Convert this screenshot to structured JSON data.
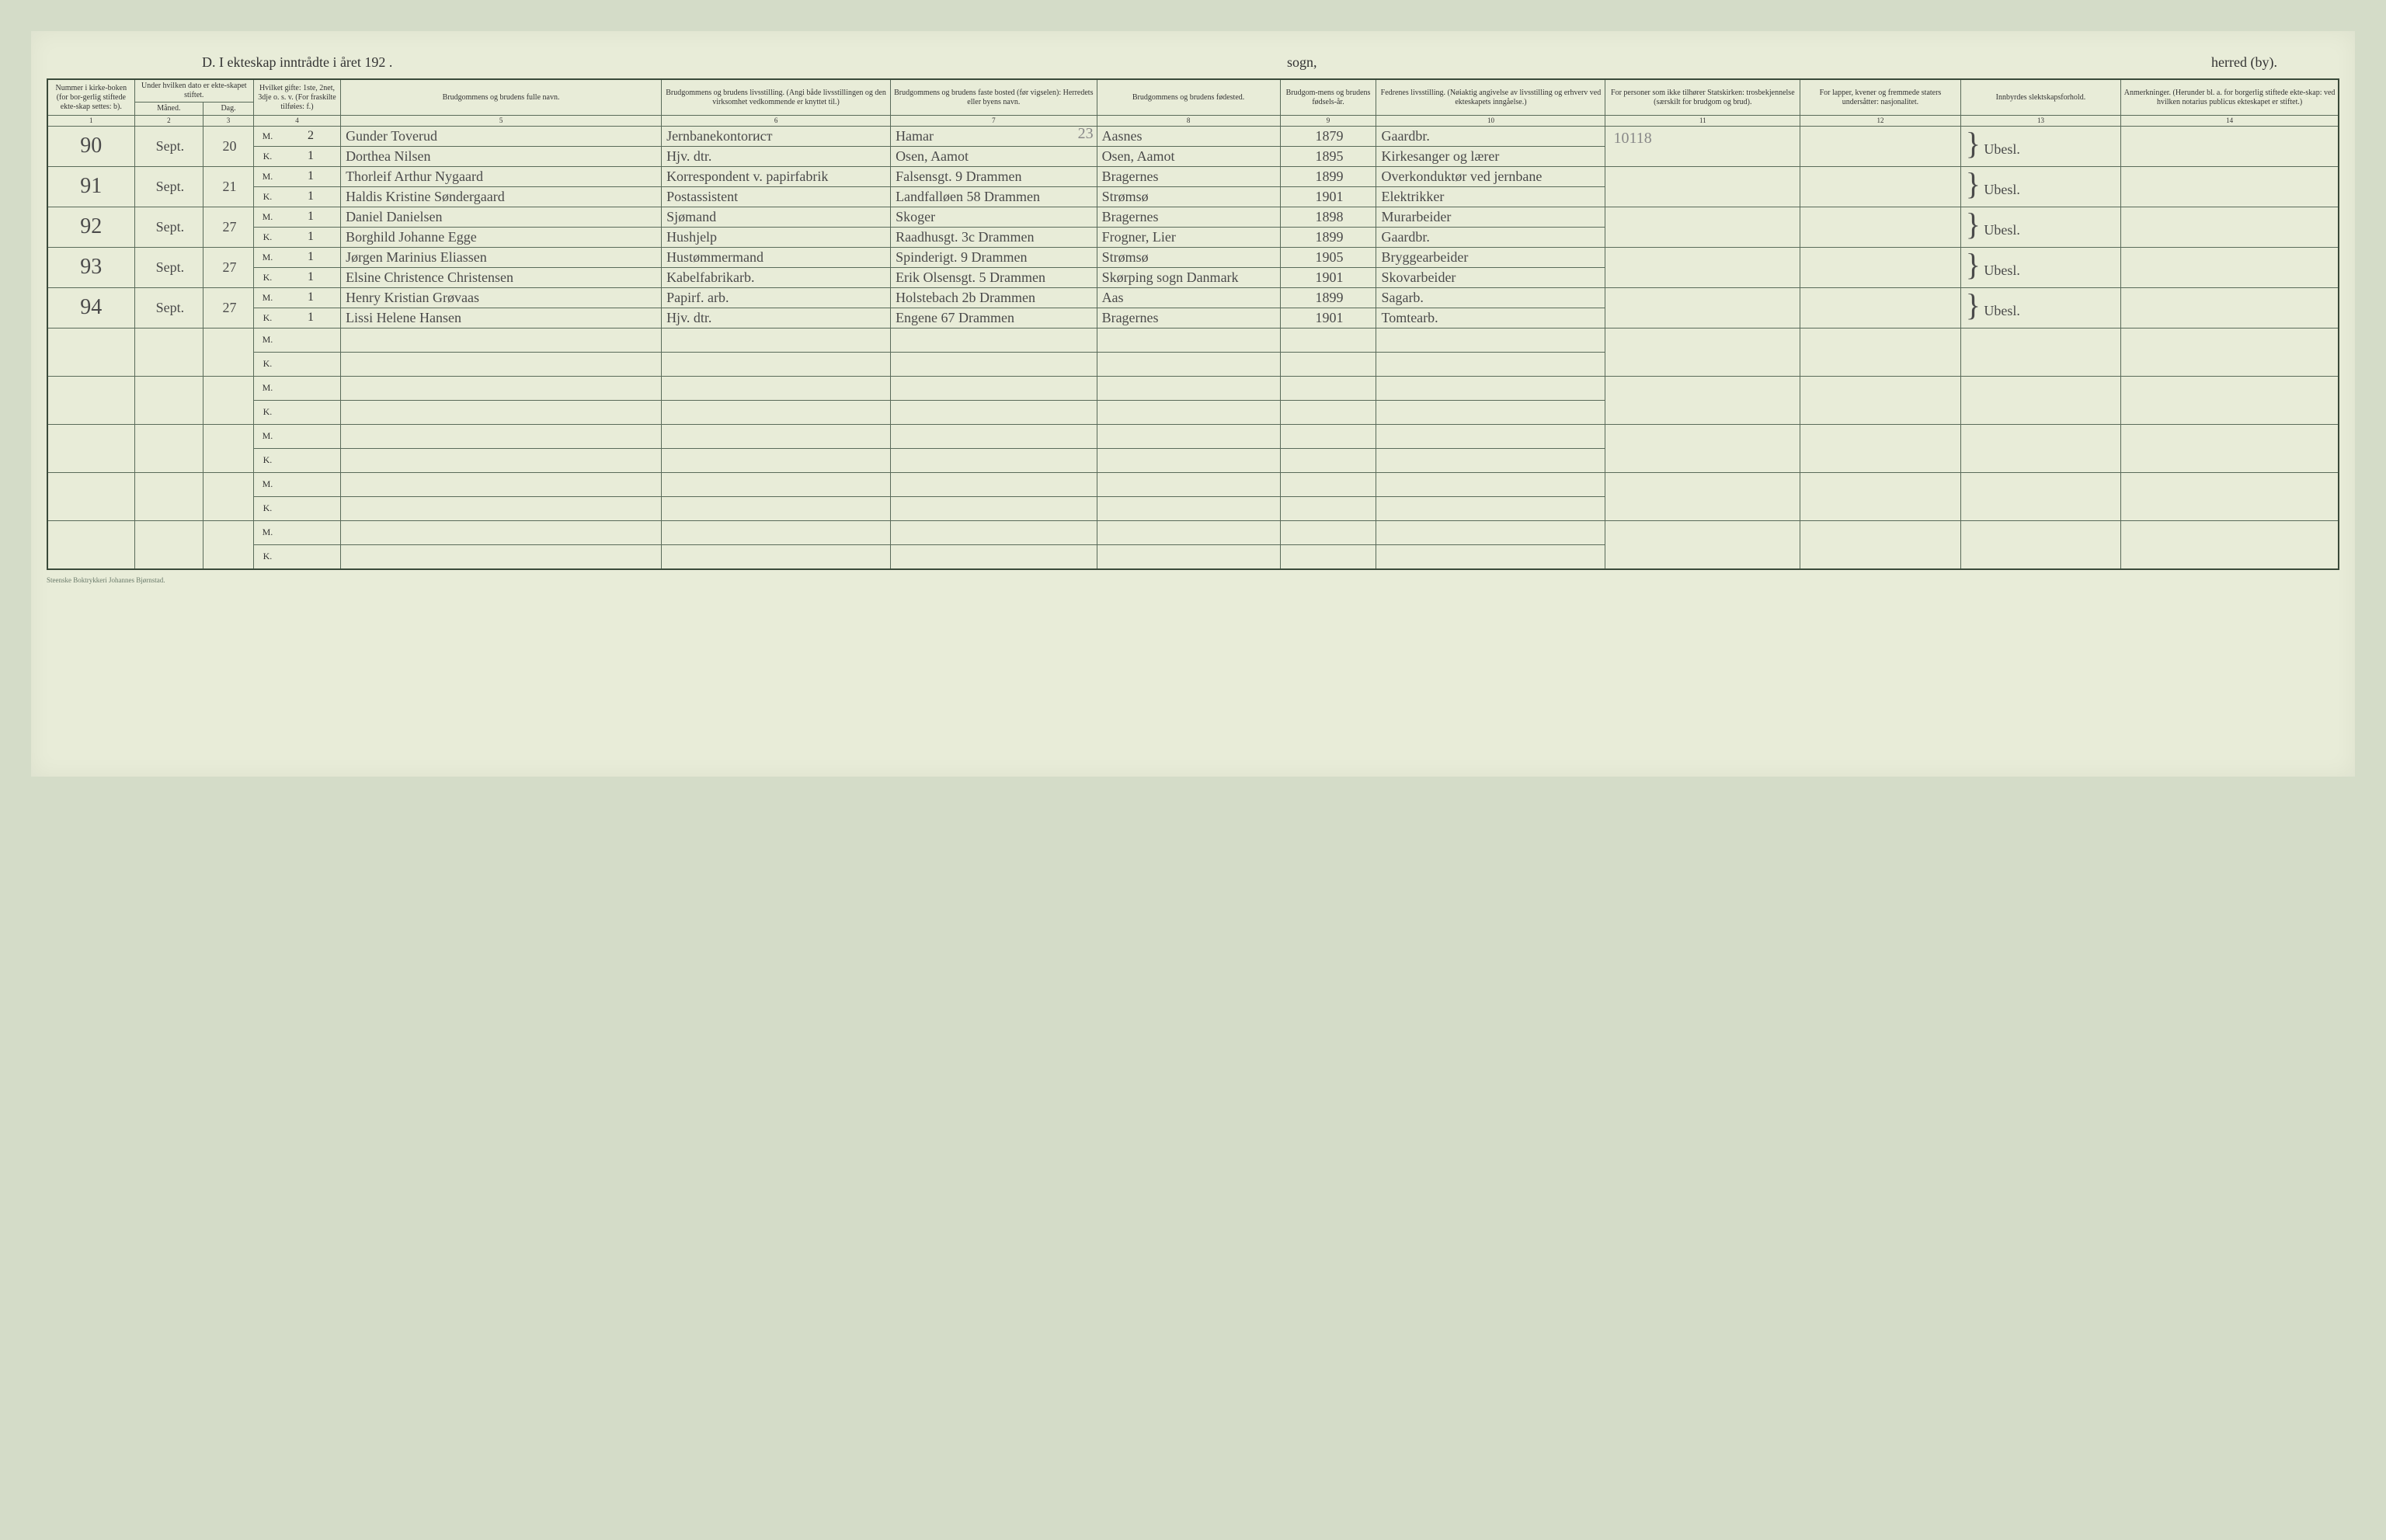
{
  "header": {
    "left": "D.  I ekteskap inntrådte i året 192  .",
    "middle": "sogn,",
    "right": "herred (by)."
  },
  "columns": {
    "c1": "Nummer i kirke-boken (for bor-gerlig stiftede ekte-skap settes: b).",
    "c2_3": "Under hvilken dato er ekte-skapet stiftet.",
    "c2": "Måned.",
    "c3": "Dag.",
    "c4": "Hvilket gifte: 1ste, 2net, 3dje o. s. v. (For fraskilte tilføies: f.)",
    "c5": "Brudgommens og brudens fulle navn.",
    "c6": "Brudgommens og brudens livsstilling. (Angi både livsstillingen og den virksomhet vedkommende er knyttet til.)",
    "c7": "Brudgommens og brudens faste bosted (før vigselen): Herredets eller byens navn.",
    "c8": "Brudgommens og brudens fødested.",
    "c9": "Brudgom-mens og brudens fødsels-år.",
    "c10": "Fedrenes livsstilling. (Nøiaktig angivelse av livsstilling og erhverv ved ekteskapets inngåelse.)",
    "c11": "For personer som ikke tilhører Statskirken: trosbekjennelse (særskilt for brudgom og brud).",
    "c12": "For lapper, kvener og fremmede staters undersåtter: nasjonalitet.",
    "c13": "Innbyrdes slektskapsforhold.",
    "c14": "Anmerkninger. (Herunder bl. a. for borgerlig stiftede ekte-skap: ved hvilken notarius publicus ekteskapet er stiftet.)"
  },
  "colnums": [
    "1",
    "2",
    "3",
    "4",
    "5",
    "6",
    "7",
    "8",
    "9",
    "10",
    "11",
    "12",
    "13",
    "14"
  ],
  "pencil_23": "23",
  "pencil_10118": "10118",
  "entries": [
    {
      "num": "90",
      "month": "Sept.",
      "day": "20",
      "m": {
        "gifte": "2",
        "navn": "Gunder Toverud",
        "stilling": "Jernbanekontorист",
        "bosted": "Hamar",
        "fodested": "Aasnes",
        "aar": "1879",
        "fedre": "Gaardbr."
      },
      "k": {
        "gifte": "1",
        "navn": "Dorthea Nilsen",
        "stilling": "Hjv. dtr.",
        "bosted": "Osen, Aamot",
        "fodested": "Osen, Aamot",
        "aar": "1895",
        "fedre": "Kirkesanger og lærer"
      },
      "c13": "Ubesl."
    },
    {
      "num": "91",
      "month": "Sept.",
      "day": "21",
      "m": {
        "gifte": "1",
        "navn": "Thorleif Arthur Nygaard",
        "stilling": "Korrespondent v. papirfabrik",
        "bosted": "Falsensgt. 9 Drammen",
        "fodested": "Bragernes",
        "aar": "1899",
        "fedre": "Overkonduktør ved jernbane"
      },
      "k": {
        "gifte": "1",
        "navn": "Haldis Kristine Søndergaard",
        "stilling": "Postassistent",
        "bosted": "Landfalløen 58 Drammen",
        "fodested": "Strømsø",
        "aar": "1901",
        "fedre": "Elektrikker"
      },
      "c13": "Ubesl."
    },
    {
      "num": "92",
      "month": "Sept.",
      "day": "27",
      "m": {
        "gifte": "1",
        "navn": "Daniel Danielsen",
        "stilling": "Sjømand",
        "bosted": "Skoger",
        "fodested": "Bragernes",
        "aar": "1898",
        "fedre": "Murarbeider"
      },
      "k": {
        "gifte": "1",
        "navn": "Borghild Johanne Egge",
        "stilling": "Hushjelp",
        "bosted": "Raadhusgt. 3c Drammen",
        "fodested": "Frogner, Lier",
        "aar": "1899",
        "fedre": "Gaardbr."
      },
      "c13": "Ubesl."
    },
    {
      "num": "93",
      "month": "Sept.",
      "day": "27",
      "m": {
        "gifte": "1",
        "navn": "Jørgen Marinius Eliassen",
        "stilling": "Hustømmermand",
        "bosted": "Spinderigt. 9 Drammen",
        "fodested": "Strømsø",
        "aar": "1905",
        "fedre": "Bryggearbeider"
      },
      "k": {
        "gifte": "1",
        "navn": "Elsine Christence Christensen",
        "stilling": "Kabelfabrikarb.",
        "bosted": "Erik Olsensgt. 5 Drammen",
        "fodested": "Skørping sogn Danmark",
        "aar": "1901",
        "fedre": "Skovarbeider"
      },
      "c13": "Ubesl."
    },
    {
      "num": "94",
      "month": "Sept.",
      "day": "27",
      "m": {
        "gifte": "1",
        "navn": "Henry Kristian Grøvaas",
        "stilling": "Papirf. arb.",
        "bosted": "Holstebach 2b Drammen",
        "fodested": "Aas",
        "aar": "1899",
        "fedre": "Sagarb."
      },
      "k": {
        "gifte": "1",
        "navn": "Lissi Helene Hansen",
        "stilling": "Hjv. dtr.",
        "bosted": "Engene 67 Drammen",
        "fodested": "Bragernes",
        "aar": "1901",
        "fedre": "Tomtearb."
      },
      "c13": "Ubesl."
    }
  ],
  "empty_rows": 5,
  "printer": "Steenske Boktrykkeri Johannes Bjørnstad."
}
